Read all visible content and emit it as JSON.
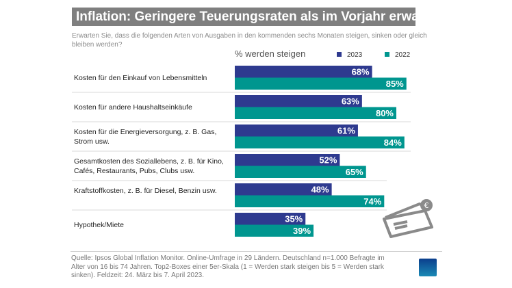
{
  "title": "Inflation: Geringere Teuerungsraten als im Vorjahr erwartet",
  "subtitle": "Erwarten Sie, dass die folgenden Arten von Ausgaben in den kommenden sechs Monaten steigen, sinken oder gleich bleiben werden?",
  "footer": "Quelle: Ipsos Global Inflation Monitor. Online-Umfrage in 29 Ländern. Deutschland n=1.000 Befragte im Alter von 16 bis 74 Jahren. Top2-Boxes einer 5er-Skala (1 = Werden stark steigen bis 5 = Werden stark sinken). Feldzeit: 24. März bis 7. April 2023.",
  "logo": "Ipsos",
  "chart_data": {
    "type": "bar",
    "orientation": "horizontal",
    "title": "% werden steigen",
    "categories": [
      "Kosten für den Einkauf von Lebensmitteln",
      "Kosten für andere Haushaltseinkäufe",
      "Kosten für die Energieversorgung,  z. B. Gas, Strom usw.",
      "Gesamtkosten des Soziallebens, z. B. für Kino, Cafés, Restaurants, Pubs, Clubs usw.",
      "Kraftstoffkosten, z. B. für Diesel, Benzin usw.",
      "Hypothek/Miete"
    ],
    "series": [
      {
        "name": "2023",
        "color": "#2e3a8f",
        "values": [
          68,
          63,
          61,
          52,
          48,
          35
        ]
      },
      {
        "name": "2022",
        "color": "#00968f",
        "values": [
          85,
          80,
          84,
          65,
          74,
          39
        ]
      }
    ],
    "value_suffix": "%",
    "legend": "top-right",
    "grid": false
  }
}
